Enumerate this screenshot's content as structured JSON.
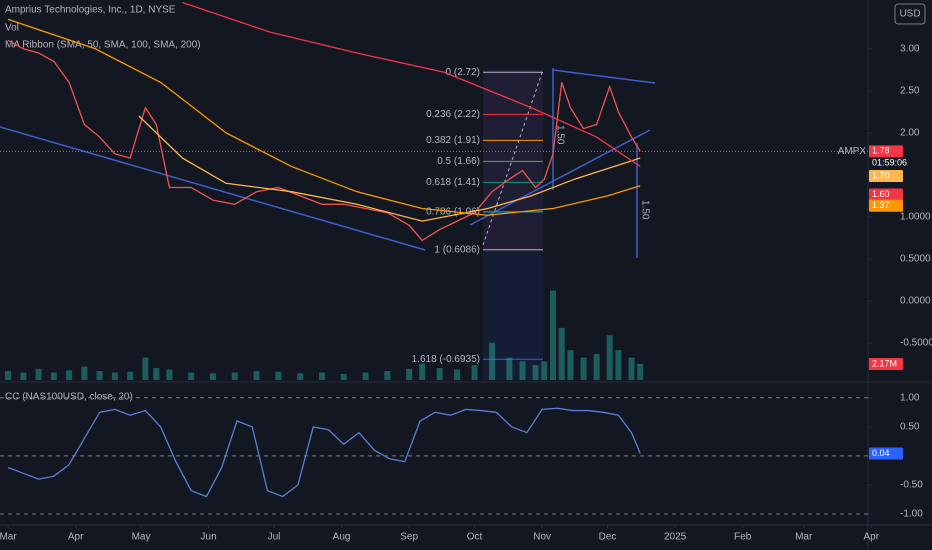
{
  "chart_data": [
    {
      "type": "line",
      "title": "Amprius Technologies, Inc., 1D, NYSE",
      "labels": [
        "MA Ribbon (SMA, 50, SMA, 100, SMA, 200)"
      ],
      "symbol": "AMPX",
      "countdown": "01:59:06",
      "currency": "USD",
      "xlim": [
        -3.7,
        394.5
      ],
      "xticks": [
        {
          "value": 0,
          "label": "Mar"
        },
        {
          "value": 31,
          "label": "Apr"
        },
        {
          "value": 61,
          "label": "May"
        },
        {
          "value": 92,
          "label": "Jun"
        },
        {
          "value": 122,
          "label": "Jul"
        },
        {
          "value": 153,
          "label": "Aug"
        },
        {
          "value": 184,
          "label": "Sep"
        },
        {
          "value": 214,
          "label": "Oct"
        },
        {
          "value": 245,
          "label": "Nov"
        },
        {
          "value": 275,
          "label": "Dec"
        },
        {
          "value": 306,
          "label": "2025"
        },
        {
          "value": 337,
          "label": "Feb"
        },
        {
          "value": 365,
          "label": "Mar"
        },
        {
          "value": 396,
          "label": "Apr"
        }
      ],
      "ylim": [
        -0.94,
        3.58
      ],
      "yticks": [
        {
          "value": 3,
          "label": "3.00"
        },
        {
          "value": 2.5,
          "label": "2.50"
        },
        {
          "value": 2,
          "label": "2.00"
        },
        {
          "value": 1,
          "label": "1.0000"
        },
        {
          "value": 0.5,
          "label": "0.5000"
        },
        {
          "value": 0,
          "label": "0.0000"
        },
        {
          "value": -0.5,
          "label": "-0.5000"
        }
      ],
      "y2lim": [
        0,
        51
      ],
      "fib_levels": [
        {
          "label": "0 (2.72)",
          "price": 2.72,
          "color": "#b2b5be"
        },
        {
          "label": "0.236 (2.22)",
          "price": 2.22,
          "color": "#f23645"
        },
        {
          "label": "0.382 (1.91)",
          "price": 1.91,
          "color": "#ff9800"
        },
        {
          "label": "0.5 (1.66)",
          "price": 1.66,
          "color": "#4caf50"
        },
        {
          "label": "0.618 (1.41)",
          "price": 1.41,
          "color": "#089981"
        },
        {
          "label": "0.786 (1.06)",
          "price": 1.06,
          "color": "#00bcd4"
        },
        {
          "label": "1 (0.6086)",
          "price": 0.6086,
          "color": "#b2b5be"
        },
        {
          "label": "1.618 (-0.6935)",
          "price": -0.6935,
          "color": "#2962ff"
        }
      ],
      "trend_labels": [
        "1.50",
        "1.50"
      ],
      "series": [
        {
          "name": "AMPX",
          "color": "#ef5350",
          "x": [
            0,
            7,
            14,
            21,
            28,
            35,
            42,
            49,
            56,
            63,
            68,
            74,
            84,
            94,
            104,
            114,
            124,
            134,
            144,
            154,
            164,
            174,
            184,
            190,
            198,
            206,
            214,
            222,
            230,
            236,
            242,
            246,
            250,
            254,
            258,
            264,
            270,
            276,
            280,
            286,
            290
          ],
          "values": [
            3.1,
            3.0,
            2.95,
            2.85,
            2.6,
            2.1,
            1.95,
            1.75,
            1.7,
            2.3,
            2.1,
            1.35,
            1.35,
            1.2,
            1.15,
            1.3,
            1.35,
            1.25,
            1.15,
            1.15,
            1.1,
            1.05,
            0.9,
            0.72,
            0.85,
            0.95,
            1.05,
            1.3,
            1.45,
            1.55,
            1.35,
            1.45,
            1.75,
            2.6,
            2.3,
            2.05,
            2.1,
            2.55,
            2.25,
            1.95,
            1.78
          ]
        },
        {
          "color": "#ffb74d",
          "x": [
            60,
            80,
            100,
            130,
            160,
            190,
            220,
            240,
            260,
            290
          ],
          "values": [
            2.2,
            1.7,
            1.4,
            1.3,
            1.15,
            0.95,
            1.1,
            1.25,
            1.45,
            1.7
          ],
          "value_labels": [
            null,
            null,
            null,
            null,
            null,
            null,
            null,
            null,
            null,
            "1.70"
          ]
        },
        {
          "color": "#f23645",
          "x": [
            80,
            120,
            160,
            200,
            240,
            270,
            290
          ],
          "values": [
            3.55,
            3.2,
            2.95,
            2.72,
            2.3,
            1.95,
            1.6
          ],
          "value_labels": [
            null,
            null,
            null,
            null,
            null,
            null,
            "1.60"
          ]
        },
        {
          "color": "#ff9800",
          "x": [
            0,
            40,
            70,
            100,
            130,
            160,
            190,
            220,
            250,
            275,
            290
          ],
          "values": [
            3.35,
            3.0,
            2.6,
            2.0,
            1.6,
            1.3,
            1.1,
            1.02,
            1.1,
            1.25,
            1.37
          ]
        },
        {
          "name": "Vol",
          "axis": "y2",
          "color": "#26a69a",
          "x": [
            0,
            7,
            14,
            21,
            28,
            35,
            42,
            49,
            56,
            63,
            68,
            74,
            84,
            94,
            104,
            114,
            124,
            134,
            144,
            154,
            164,
            174,
            184,
            190,
            198,
            206,
            214,
            222,
            230,
            236,
            242,
            246,
            250,
            254,
            258,
            264,
            270,
            276,
            280,
            286,
            290
          ],
          "values": [
            1.2,
            1.0,
            1.5,
            1.0,
            1.3,
            1.8,
            1.2,
            1.0,
            1.1,
            3.0,
            1.6,
            1.4,
            1.0,
            0.9,
            1.0,
            1.2,
            1.1,
            0.9,
            1.0,
            0.8,
            1.0,
            1.2,
            1.5,
            2.2,
            1.6,
            1.4,
            2.0,
            5.0,
            3.0,
            2.5,
            2.0,
            2.5,
            12.0,
            7.0,
            4.0,
            3.0,
            3.5,
            6.0,
            4.0,
            3.0,
            2.17
          ],
          "value_labels": [
            null,
            null,
            null,
            null,
            null,
            null,
            null,
            null,
            null,
            null,
            null,
            null,
            null,
            null,
            null,
            null,
            null,
            null,
            null,
            null,
            null,
            null,
            null,
            null,
            null,
            null,
            null,
            null,
            null,
            null,
            null,
            null,
            null,
            null,
            null,
            null,
            null,
            null,
            null,
            null,
            "2.17M"
          ]
        }
      ]
    },
    {
      "type": "line",
      "title": "CC (NAS100USD, close, 20)",
      "ylim": [
        -1.19,
        1.22
      ],
      "yticks": [
        {
          "value": 1,
          "label": "1.00"
        },
        {
          "value": 0.5,
          "label": "0.50"
        },
        {
          "value": -0.5,
          "label": "-0.50"
        },
        {
          "value": -1,
          "label": "-1.00"
        }
      ],
      "levels": [
        1,
        0,
        -1
      ],
      "series": [
        {
          "color": "#5b7fd6",
          "x": [
            0,
            7,
            14,
            21,
            28,
            35,
            42,
            49,
            56,
            63,
            70,
            77,
            84,
            91,
            98,
            105,
            112,
            119,
            126,
            133,
            140,
            147,
            154,
            161,
            168,
            175,
            182,
            189,
            196,
            203,
            210,
            217,
            224,
            231,
            238,
            245,
            252,
            259,
            266,
            273,
            280,
            286,
            290
          ],
          "values": [
            -0.2,
            -0.3,
            -0.4,
            -0.35,
            -0.15,
            0.3,
            0.75,
            0.8,
            0.7,
            0.78,
            0.5,
            -0.1,
            -0.6,
            -0.7,
            -0.2,
            0.6,
            0.5,
            -0.6,
            -0.7,
            -0.5,
            0.5,
            0.45,
            0.2,
            0.4,
            0.1,
            -0.05,
            -0.1,
            0.6,
            0.75,
            0.7,
            0.8,
            0.78,
            0.75,
            0.5,
            0.4,
            0.8,
            0.82,
            0.78,
            0.78,
            0.75,
            0.7,
            0.4,
            0.04
          ]
        }
      ]
    }
  ]
}
